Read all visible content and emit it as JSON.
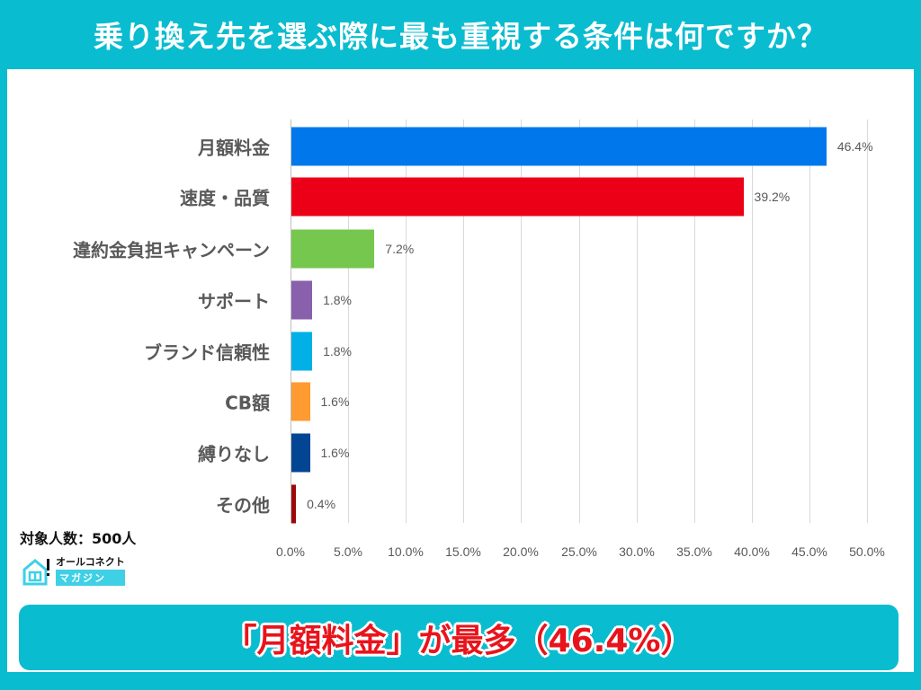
{
  "header": {
    "title": "乗り換え先を選ぶ際に最も重視する条件は何ですか？"
  },
  "chart_data": {
    "type": "bar",
    "orientation": "horizontal",
    "title": "乗り換え先を選ぶ際に最も重視する条件は何ですか？",
    "categories": [
      "月額料金",
      "速度・品質",
      "違約金負担キャンペーン",
      "サポート",
      "ブランド信頼性",
      "CB額",
      "縛りなし",
      "その他"
    ],
    "values": [
      46.4,
      39.2,
      7.2,
      1.8,
      1.8,
      1.6,
      1.6,
      0.4
    ],
    "value_labels": [
      "46.4%",
      "39.2%",
      "7.2%",
      "1.8%",
      "1.8%",
      "1.6%",
      "1.6%",
      "0.4%"
    ],
    "colors": [
      "#0078EC",
      "#EC0017",
      "#75C74D",
      "#8960AC",
      "#00B0E6",
      "#FF9B31",
      "#014593",
      "#9B0A0A"
    ],
    "xlabel": "",
    "ylabel": "",
    "xlim": [
      0,
      50
    ],
    "xticks": [
      "0.0%",
      "5.0%",
      "10.0%",
      "15.0%",
      "20.0%",
      "25.0%",
      "30.0%",
      "35.0%",
      "40.0%",
      "45.0%",
      "50.0%"
    ],
    "grid": true,
    "legend": null
  },
  "footer": {
    "sample_size": "対象人数：500人",
    "logo_top": "オールコネクト",
    "logo_bottom": "マガジン",
    "summary": "「月額料金」が最多（46.4%）"
  },
  "colors": {
    "frame": "#0ABCCF",
    "summary_text": "#E8141C"
  }
}
